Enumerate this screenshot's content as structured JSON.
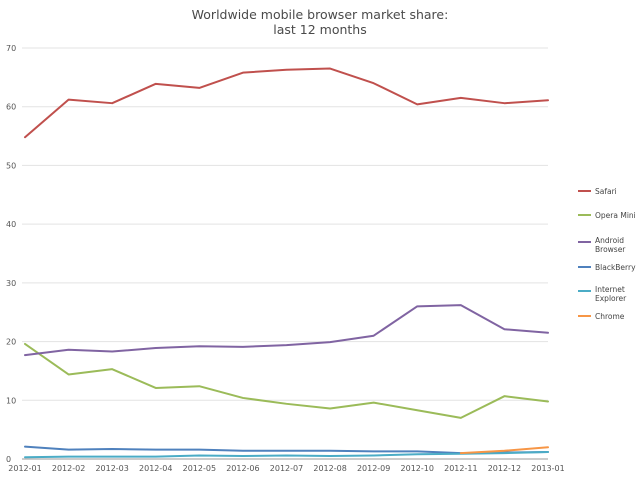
{
  "chart_data": {
    "type": "line",
    "title": [
      "Worldwide mobile browser market share:",
      "last 12 months"
    ],
    "xlabel": "",
    "ylabel": "",
    "ylim": [
      0,
      70
    ],
    "yticks": [
      0,
      10,
      20,
      30,
      40,
      50,
      60,
      70
    ],
    "grid": "horizontal",
    "legend_position": "right",
    "categories": [
      "2012-01",
      "2012-02",
      "2012-03",
      "2012-04",
      "2012-05",
      "2012-06",
      "2012-07",
      "2012-08",
      "2012-09",
      "2012-10",
      "2012-11",
      "2012-12",
      "2013-01"
    ],
    "series": [
      {
        "name": "Safari",
        "color": "#c0504d",
        "values": [
          54.8,
          61.2,
          60.6,
          63.9,
          63.2,
          65.8,
          66.3,
          66.5,
          64.0,
          60.4,
          61.5,
          60.6,
          61.1
        ]
      },
      {
        "name": "Opera Mini",
        "color": "#9bbb59",
        "values": [
          19.6,
          14.4,
          15.3,
          12.1,
          12.4,
          10.4,
          9.4,
          8.6,
          9.6,
          8.3,
          7.0,
          10.7,
          9.8
        ]
      },
      {
        "name": "Android Browser",
        "color": "#8064a2",
        "values": [
          17.7,
          18.6,
          18.3,
          18.9,
          19.2,
          19.1,
          19.4,
          19.9,
          21.0,
          26.0,
          26.2,
          22.1,
          21.5
        ]
      },
      {
        "name": "BlackBerry",
        "color": "#4f81bd",
        "values": [
          2.1,
          1.6,
          1.7,
          1.6,
          1.6,
          1.4,
          1.4,
          1.4,
          1.3,
          1.3,
          1.0,
          1.1,
          1.2
        ]
      },
      {
        "name": "Internet Explorer",
        "color": "#4bacc6",
        "values": [
          0.3,
          0.4,
          0.4,
          0.4,
          0.6,
          0.5,
          0.6,
          0.5,
          0.6,
          0.8,
          0.9,
          1.0,
          1.2
        ]
      },
      {
        "name": "Chrome",
        "color": "#f79646",
        "values": [
          null,
          null,
          null,
          null,
          null,
          null,
          null,
          null,
          null,
          null,
          1.0,
          1.4,
          2.0
        ]
      }
    ],
    "legend_labels": [
      [
        "Safari"
      ],
      [
        "Opera Mini"
      ],
      [
        "Android",
        "Browser"
      ],
      [
        "BlackBerry"
      ],
      [
        "Internet",
        "Explorer"
      ],
      [
        "Chrome"
      ]
    ]
  }
}
